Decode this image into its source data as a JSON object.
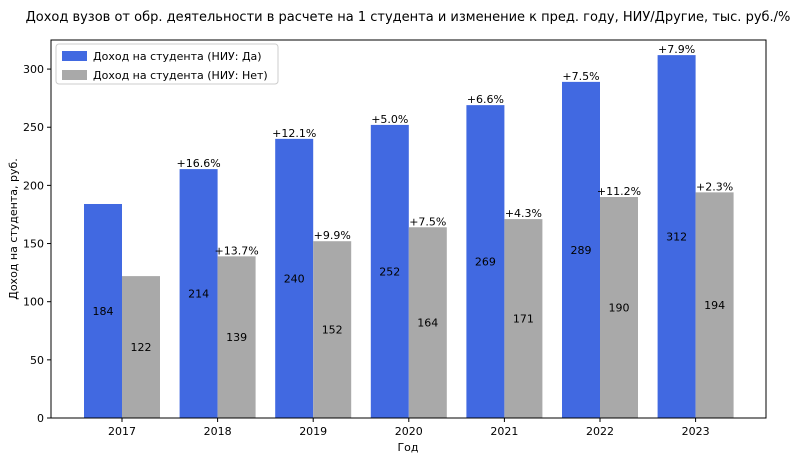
{
  "chart_data": {
    "type": "bar",
    "title": "Доход вузов от обр. деятельности в расчете на 1 студента и изменение к пред. году, НИУ/Другие, тыс. руб./%",
    "xlabel": "Год",
    "ylabel": "Доход на студента, руб.",
    "categories": [
      "2017",
      "2018",
      "2019",
      "2020",
      "2021",
      "2022",
      "2023"
    ],
    "ylim": [
      0,
      325
    ],
    "yticks": [
      0,
      50,
      100,
      150,
      200,
      250,
      300
    ],
    "grid": false,
    "legend_position": "top-left",
    "series": [
      {
        "name": "Доход на студента (НИУ: Да)",
        "color": "#4169e1",
        "values": [
          184,
          214,
          240,
          252,
          269,
          289,
          312
        ],
        "value_labels": [
          "184",
          "214",
          "240",
          "252",
          "269",
          "289",
          "312"
        ],
        "change_labels": [
          "",
          "+16.6%",
          "+12.1%",
          "+5.0%",
          "+6.6%",
          "+7.5%",
          "+7.9%"
        ]
      },
      {
        "name": "Доход на студента (НИУ: Нет)",
        "color": "#a9a9a9",
        "values": [
          122,
          139,
          152,
          164,
          171,
          190,
          194
        ],
        "value_labels": [
          "122",
          "139",
          "152",
          "164",
          "171",
          "190",
          "194"
        ],
        "change_labels": [
          "",
          "+13.7%",
          "+9.9%",
          "+7.5%",
          "+4.3%",
          "+11.2%",
          "+2.3%"
        ]
      }
    ]
  }
}
